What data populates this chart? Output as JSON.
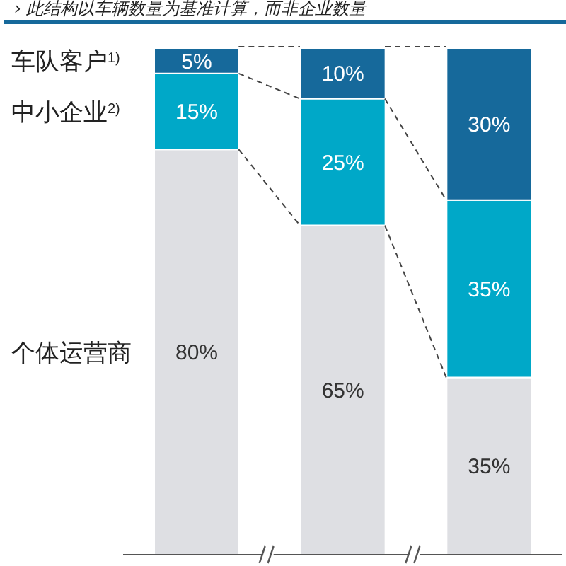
{
  "chart_data": {
    "type": "bar",
    "stacked": true,
    "subtitle": "› 此结构以车辆数量为基准计算，而非企业数量",
    "categories": [
      null,
      null,
      null
    ],
    "series": [
      {
        "name": "个体运营商",
        "color": "#dedfe3",
        "values": [
          80,
          65,
          35
        ],
        "value_labels": [
          "80%",
          "65%",
          "35%"
        ]
      },
      {
        "name": "中小企业$^{2)}$",
        "color": "#00a8c8",
        "values": [
          15,
          25,
          35
        ],
        "value_labels": [
          "15%",
          "25%",
          "35%"
        ]
      },
      {
        "name": "车队客户$^{1)}$",
        "color": "#16699b",
        "values": [
          5,
          10,
          30
        ],
        "value_labels": [
          "5%",
          "10%",
          "30%"
        ]
      }
    ]
  }
}
